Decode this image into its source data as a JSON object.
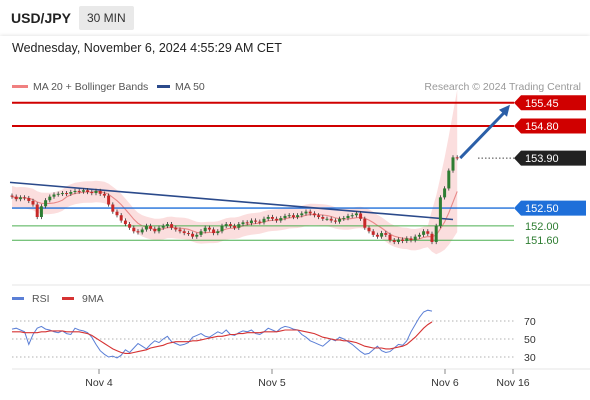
{
  "header": {
    "pair": "USD/JPY",
    "timeframe": "30 MIN",
    "datetime": "Wednesday, November 6, 2024 4:55:29 AM CET"
  },
  "colors": {
    "up_candle": "#2e7d32",
    "down_candle": "#c62828",
    "resistance": "#d00000",
    "pivot": "#1e6fd9",
    "support": "#4caf50",
    "ma50": "#2b4a8b",
    "bollinger_fill": "#f9d3d3",
    "bollinger_ma20": "#e88888",
    "current_label": "#222222",
    "arrow": "#2b5fa8",
    "rsi": "#5b7fd6",
    "rsi_ma": "#d63333"
  },
  "chart_data": [
    {
      "type": "candlestick",
      "legend": [
        {
          "label": "MA 20 + Bollinger Bands",
          "color": "#f08080"
        },
        {
          "label": "MA 50",
          "color": "#2b4a8b"
        }
      ],
      "watermark": "Research © 2024 Trading Central",
      "ylim": [
        150.7,
        155.85
      ],
      "levels": [
        {
          "value": 155.45,
          "label": "155.45",
          "kind": "target"
        },
        {
          "value": 154.8,
          "label": "154.80",
          "kind": "resistance"
        },
        {
          "value": 153.9,
          "label": "153.90",
          "kind": "current"
        },
        {
          "value": 152.5,
          "label": "152.50",
          "kind": "pivot"
        },
        {
          "value": 152.0,
          "label": "152.00",
          "kind": "support"
        },
        {
          "value": 151.6,
          "label": "151.60",
          "kind": "support"
        }
      ],
      "x_ticks": [
        "Nov 4",
        "Nov 5",
        "Nov 6",
        "Nov 16"
      ],
      "close": [
        152.82,
        152.75,
        152.8,
        152.78,
        152.7,
        152.6,
        152.25,
        152.55,
        152.72,
        152.82,
        152.88,
        152.9,
        152.92,
        152.9,
        152.95,
        152.98,
        152.96,
        153.0,
        152.95,
        152.92,
        152.98,
        152.9,
        152.85,
        152.6,
        152.4,
        152.3,
        152.15,
        152.05,
        151.95,
        151.85,
        151.82,
        151.9,
        152.0,
        151.92,
        151.85,
        151.95,
        152.0,
        152.05,
        151.95,
        151.9,
        151.85,
        151.8,
        151.78,
        151.7,
        151.75,
        151.85,
        151.95,
        151.9,
        151.8,
        151.85,
        152.0,
        152.05,
        152.0,
        151.95,
        152.05,
        152.1,
        152.08,
        152.15,
        152.12,
        152.1,
        152.2,
        152.25,
        152.2,
        152.15,
        152.22,
        152.28,
        152.3,
        152.25,
        152.3,
        152.35,
        152.4,
        152.35,
        152.3,
        152.25,
        152.2,
        152.2,
        152.15,
        152.12,
        152.2,
        152.22,
        152.28,
        152.3,
        152.35,
        152.2,
        151.95,
        151.85,
        151.75,
        151.7,
        151.8,
        151.75,
        151.6,
        151.55,
        151.62,
        151.58,
        151.65,
        151.6,
        151.7,
        151.75,
        151.85,
        151.78,
        151.55,
        152.0,
        152.8,
        153.05,
        153.55,
        153.92,
        153.9
      ],
      "moving_average_50": [
        [
          0,
          153.22
        ],
        [
          105,
          152.18
        ]
      ],
      "bollinger_ma20": [
        152.78,
        152.76,
        152.72,
        152.69,
        152.65,
        152.6,
        152.62,
        152.65,
        152.7,
        152.74,
        152.78,
        152.8,
        152.8,
        152.82,
        152.83,
        152.84,
        152.83,
        152.8,
        152.74,
        152.66,
        152.58,
        152.5,
        152.42,
        152.35,
        152.27,
        152.2,
        152.14,
        152.08,
        152.02,
        151.98,
        151.95,
        151.94,
        151.93,
        151.93,
        151.92,
        151.92,
        151.91,
        151.9,
        151.89,
        151.89,
        151.9,
        151.92,
        151.94,
        151.97,
        152.0,
        152.03,
        152.06,
        152.08,
        152.1,
        152.12,
        152.15,
        152.17,
        152.19,
        152.2,
        152.21,
        152.22,
        152.22,
        152.21,
        152.2,
        152.18,
        152.15,
        152.1,
        152.05,
        152.0,
        151.95,
        151.9,
        151.85,
        151.8,
        151.76,
        151.73,
        151.72,
        151.72,
        151.74,
        151.78,
        151.85,
        151.95,
        152.1,
        152.3
      ],
      "bollinger_ma20_start": 30,
      "bollinger_ma20_seg2": [
        [
          0,
          152.8
        ],
        [
          10,
          152.82
        ],
        [
          22,
          152.88
        ],
        [
          30,
          152.76
        ]
      ]
    },
    {
      "type": "line",
      "legend": [
        {
          "label": "RSI",
          "color": "#5b7fd6"
        },
        {
          "label": "9MA",
          "color": "#d63333"
        }
      ],
      "yticks": [
        70,
        50,
        30
      ],
      "ylim": [
        17,
        87
      ],
      "rsi": [
        61,
        62,
        60,
        58,
        44,
        55,
        62,
        64,
        61,
        60,
        58,
        57,
        59,
        56,
        55,
        62,
        60,
        59,
        57,
        52,
        44,
        37,
        33,
        30,
        31,
        29,
        32,
        38,
        35,
        40,
        45,
        42,
        39,
        44,
        48,
        46,
        50,
        53,
        47,
        45,
        43,
        44,
        46,
        52,
        54,
        56,
        53,
        52,
        55,
        58,
        56,
        60,
        55,
        54,
        57,
        59,
        58,
        60,
        56,
        55,
        58,
        62,
        60,
        58,
        62,
        64,
        63,
        61,
        60,
        55,
        52,
        48,
        46,
        44,
        42,
        46,
        50,
        48,
        52,
        50,
        47,
        44,
        40,
        36,
        33,
        34,
        38,
        42,
        37,
        35,
        36,
        40,
        44,
        43,
        48,
        58,
        66,
        74,
        80,
        82,
        81
      ],
      "rsi_ma": [
        58,
        58,
        58,
        57,
        57,
        57,
        57,
        58,
        58,
        59,
        59,
        59,
        59,
        58,
        58,
        58,
        58,
        57,
        56,
        54,
        51,
        48,
        45,
        42,
        39,
        37,
        35,
        34,
        34,
        35,
        36,
        37,
        38,
        40,
        41,
        42,
        43,
        45,
        46,
        47,
        47,
        47,
        47,
        48,
        48,
        49,
        50,
        51,
        52,
        53,
        53,
        54,
        55,
        55,
        56,
        56,
        57,
        57,
        57,
        57,
        58,
        58,
        58,
        58,
        59,
        60,
        60,
        60,
        60,
        59,
        58,
        57,
        56,
        54,
        52,
        51,
        50,
        49,
        49,
        48,
        48,
        47,
        46,
        44,
        42,
        41,
        40,
        40,
        40,
        39,
        39,
        40,
        41,
        42,
        44,
        48,
        52,
        57,
        62,
        66,
        69
      ]
    }
  ]
}
